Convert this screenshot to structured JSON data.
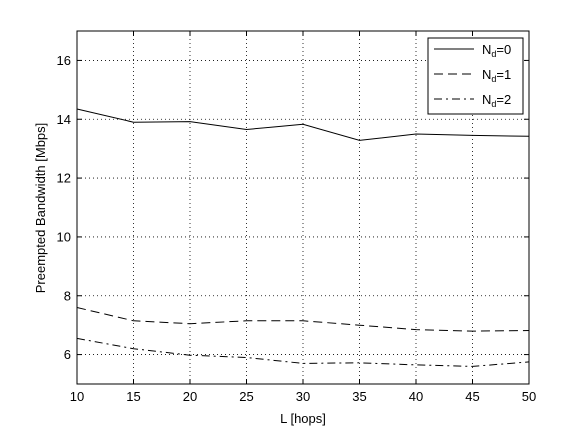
{
  "chart_data": {
    "type": "line",
    "xlabel": "L [hops]",
    "ylabel": "Preempted Bandwidth [Mbps]",
    "xlim": [
      10,
      50
    ],
    "ylim": [
      5,
      17
    ],
    "xticks": [
      10,
      15,
      20,
      25,
      30,
      35,
      40,
      45,
      50
    ],
    "yticks": [
      6,
      8,
      10,
      12,
      14,
      16
    ],
    "grid": true,
    "legend_position": "top-right",
    "x": [
      10,
      15,
      20,
      25,
      30,
      35,
      40,
      45,
      50
    ],
    "series": [
      {
        "name_main": "N",
        "name_sub": "d",
        "name_tail": "=0",
        "style": "solid",
        "values": [
          14.35,
          13.9,
          13.92,
          13.65,
          13.83,
          13.28,
          13.5,
          13.45,
          13.42
        ]
      },
      {
        "name_main": "N",
        "name_sub": "d",
        "name_tail": "=1",
        "style": "dashed",
        "values": [
          7.6,
          7.15,
          7.05,
          7.15,
          7.15,
          7.0,
          6.85,
          6.8,
          6.82
        ]
      },
      {
        "name_main": "N",
        "name_sub": "d",
        "name_tail": "=2",
        "style": "dashdot",
        "values": [
          6.55,
          6.2,
          5.98,
          5.9,
          5.7,
          5.72,
          5.65,
          5.6,
          5.75
        ]
      }
    ]
  }
}
